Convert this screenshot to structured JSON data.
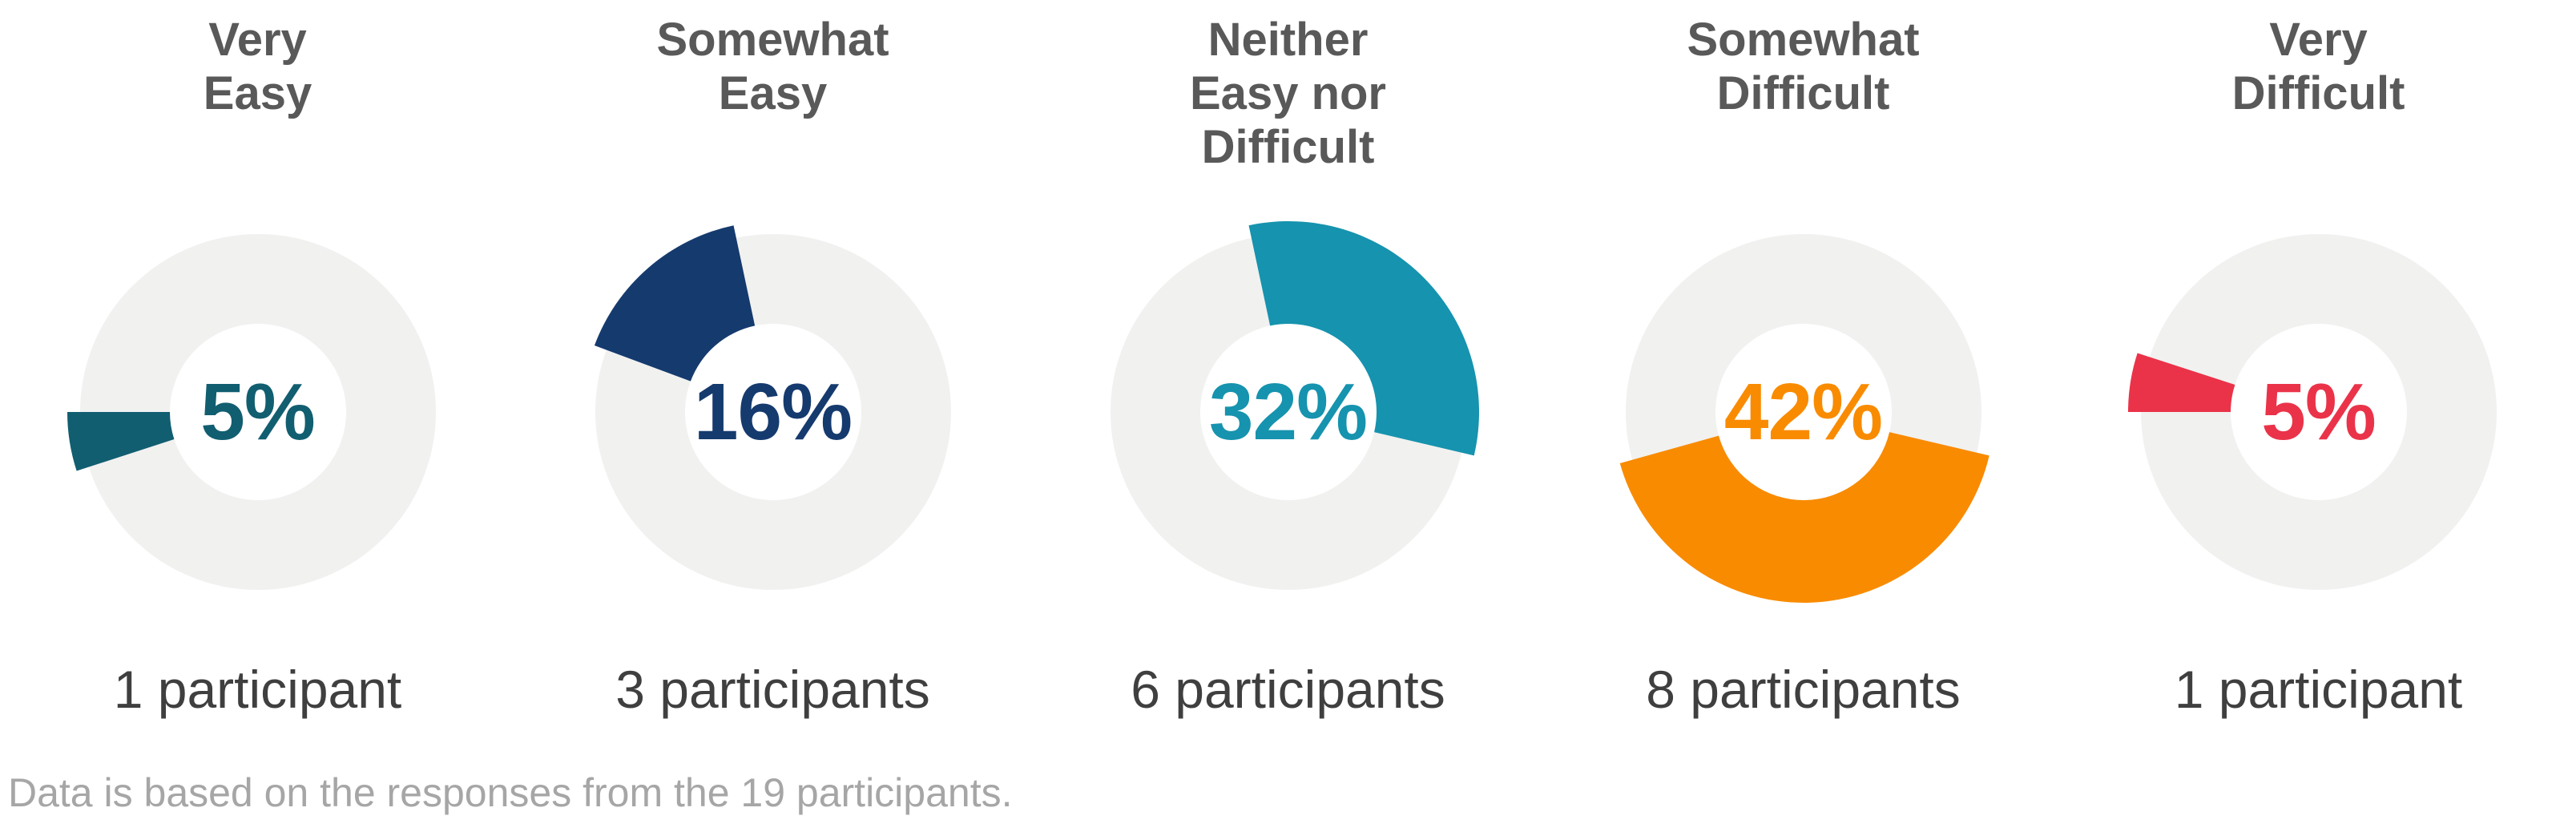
{
  "chart_data": {
    "type": "pie",
    "subtype": "donut-panel-series",
    "title": "",
    "legend_position": "none",
    "ring_color": "#F1F1F0",
    "footnote": "Data is based on the responses from the 19 participants.",
    "total_participants": 19,
    "categories": [
      "Very Easy",
      "Somewhat Easy",
      "Neither Easy nor Difficult",
      "Somewhat Difficult",
      "Very Difficult"
    ],
    "values_pct": [
      5,
      16,
      32,
      42,
      5
    ],
    "counts": [
      1,
      3,
      6,
      8,
      1
    ],
    "charts": [
      {
        "label": "Very Easy",
        "label_multiline": "Very\nEasy",
        "value_pct": 5,
        "pct_label": "5%",
        "count": 1,
        "count_label": "1 participant",
        "color": "#115E70",
        "start_angle_deg": 252,
        "end_angle_deg": 270
      },
      {
        "label": "Somewhat Easy",
        "label_multiline": "Somewhat\nEasy",
        "value_pct": 16,
        "pct_label": "16%",
        "count": 3,
        "count_label": "3 participants",
        "color": "#153A6E",
        "start_angle_deg": 290.4,
        "end_angle_deg": 348
      },
      {
        "label": "Neither Easy nor Difficult",
        "label_multiline": "Neither\nEasy nor\nDifficult",
        "value_pct": 32,
        "pct_label": "32%",
        "count": 6,
        "count_label": "6 participants",
        "color": "#1693AE",
        "start_angle_deg": 348,
        "end_angle_deg": 463.2
      },
      {
        "label": "Somewhat Difficult",
        "label_multiline": "Somewhat\nDifficult",
        "value_pct": 42,
        "pct_label": "42%",
        "count": 8,
        "count_label": "8 participants",
        "color": "#F98B00",
        "start_angle_deg": 103.2,
        "end_angle_deg": 254.4
      },
      {
        "label": "Very Difficult",
        "label_multiline": "Very\nDifficult",
        "value_pct": 5,
        "pct_label": "5%",
        "count": 1,
        "count_label": "1 participant",
        "color": "#EA3349",
        "start_angle_deg": 270,
        "end_angle_deg": 288
      }
    ]
  }
}
